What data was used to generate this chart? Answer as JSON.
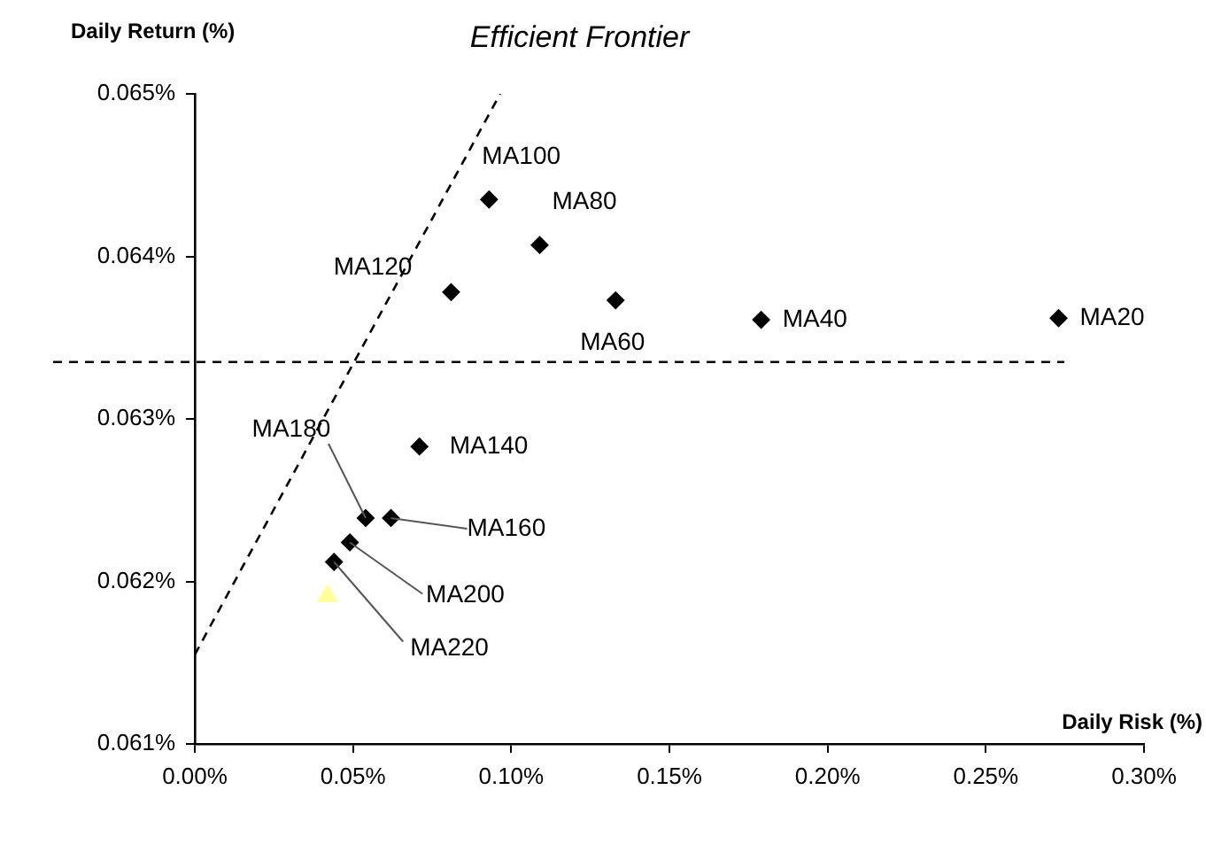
{
  "chart_data": {
    "type": "scatter",
    "xlabel": "Daily Risk (%)",
    "ylabel": "Daily Return (%)",
    "xlim": [
      0,
      0.3
    ],
    "xticks": [
      {
        "value": 0,
        "label": "0.00%"
      },
      {
        "value": 0.05,
        "label": "0.05%"
      },
      {
        "value": 0.1,
        "label": "0.10%"
      },
      {
        "value": 0.15,
        "label": "0.15%"
      },
      {
        "value": 0.2,
        "label": "0.20%"
      },
      {
        "value": 0.25,
        "label": "0.25%"
      },
      {
        "value": 0.3,
        "label": "0.30%"
      }
    ],
    "ylim": [
      0.061,
      0.065
    ],
    "yticks": [
      {
        "value": 0.061,
        "label": "0.061%"
      },
      {
        "value": 0.062,
        "label": "0.062%"
      },
      {
        "value": 0.063,
        "label": "0.063%"
      },
      {
        "value": 0.064,
        "label": "0.064%"
      },
      {
        "value": 0.065,
        "label": "0.065%"
      }
    ],
    "grid": false,
    "legend": false,
    "series": [
      {
        "type": "scatter",
        "color": "#000000",
        "marker": "diamond",
        "x": [
          0.273,
          0.179,
          0.133,
          0.109,
          0.093,
          0.081,
          0.071,
          0.062,
          0.054,
          0.049,
          0.044
        ],
        "values": [
          0.06362,
          0.06361,
          0.06373,
          0.06407,
          0.06435,
          0.06378,
          0.06283,
          0.06239,
          0.06239,
          0.06224,
          0.06212
        ]
      },
      {
        "type": "scatter",
        "color": "#ffff99",
        "marker": "triangle",
        "x": [
          0.042
        ],
        "values": [
          0.06191
        ]
      },
      {
        "type": "line",
        "name": "Efficient Frontier",
        "color": "#000000",
        "marker": "none",
        "line_style": "dashed",
        "x": [
          0,
          0.0965
        ],
        "values": [
          0.06155,
          0.065
        ]
      }
    ],
    "ref_lines": [
      {
        "axis": "y",
        "value": 0.06335,
        "color": "#000000",
        "line_style": "dashed"
      }
    ],
    "annotations": [
      {
        "text": "MA20",
        "x": 0.273,
        "y": 0.06362
      },
      {
        "text": "MA40",
        "x": 0.179,
        "y": 0.06361
      },
      {
        "text": "MA60",
        "x": 0.133,
        "y": 0.06373
      },
      {
        "text": "MA80",
        "x": 0.109,
        "y": 0.06407
      },
      {
        "text": "MA100",
        "x": 0.093,
        "y": 0.06435
      },
      {
        "text": "MA120",
        "x": 0.081,
        "y": 0.06378
      },
      {
        "text": "MA140",
        "x": 0.071,
        "y": 0.06283
      },
      {
        "text": "MA160",
        "x": 0.062,
        "y": 0.06239
      },
      {
        "text": "MA180",
        "x": 0.054,
        "y": 0.06239
      },
      {
        "text": "MA200",
        "x": 0.049,
        "y": 0.06224
      },
      {
        "text": "MA220",
        "x": 0.044,
        "y": 0.06212
      }
    ]
  }
}
